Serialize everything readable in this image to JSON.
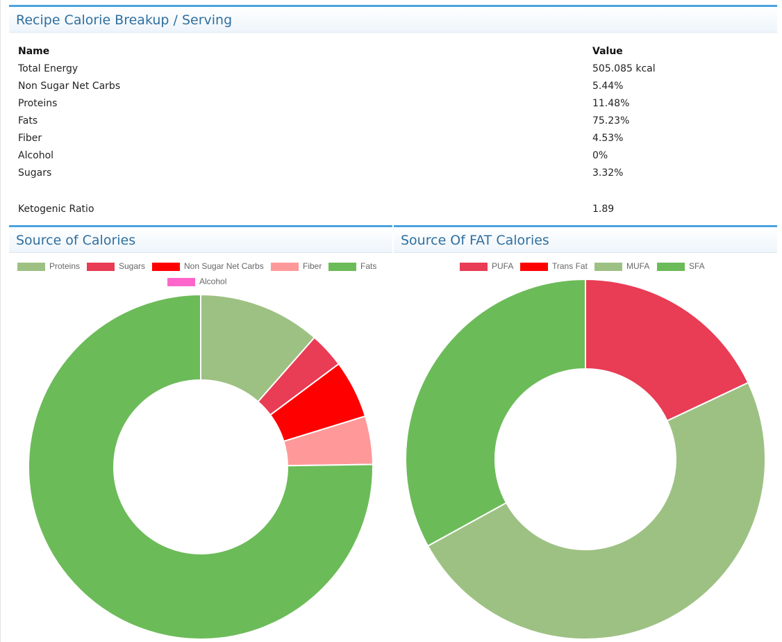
{
  "calorie_panel": {
    "title": "Recipe Calorie Breakup / Serving",
    "header_name": "Name",
    "header_value": "Value",
    "rows": [
      {
        "name": "Total Energy",
        "value": "505.085 kcal"
      },
      {
        "name": "Non Sugar Net Carbs",
        "value": "5.44%"
      },
      {
        "name": "Proteins",
        "value": "11.48%"
      },
      {
        "name": "Fats",
        "value": "75.23%"
      },
      {
        "name": "Fiber",
        "value": "4.53%"
      },
      {
        "name": "Alcohol",
        "value": "0%"
      },
      {
        "name": "Sugars",
        "value": "3.32%"
      }
    ],
    "ketogenic": {
      "name": "Ketogenic Ratio",
      "value": "1.89"
    }
  },
  "accent_color": "#4aa3df",
  "chart_data": [
    {
      "type": "pie",
      "donut": true,
      "title": "Source of Calories",
      "legend_position": "top",
      "categories": [
        "Proteins",
        "Sugars",
        "Non Sugar Net Carbs",
        "Fiber",
        "Fats",
        "Alcohol"
      ],
      "values": [
        11.48,
        3.32,
        5.44,
        4.53,
        75.23,
        0
      ],
      "colors": [
        "#9dc183",
        "#e93c55",
        "#ff0000",
        "#ff9999",
        "#6cbb59",
        "#ff66cc"
      ]
    },
    {
      "type": "pie",
      "donut": true,
      "title": "Source Of FAT Calories",
      "legend_position": "top",
      "categories": [
        "PUFA",
        "Trans Fat",
        "MUFA",
        "SFA"
      ],
      "values": [
        18,
        0,
        49,
        33
      ],
      "colors": [
        "#e93c55",
        "#ff0000",
        "#9dc183",
        "#6cbb59"
      ]
    }
  ]
}
